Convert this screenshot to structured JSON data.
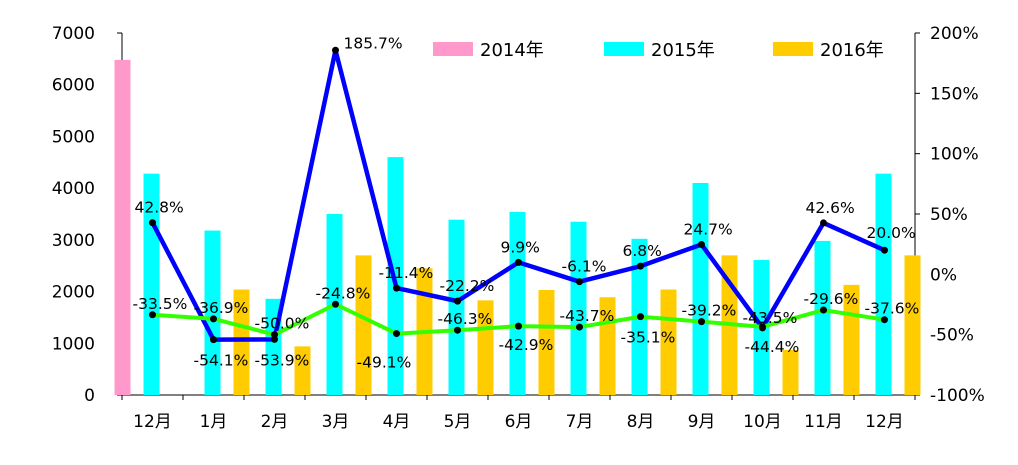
{
  "chart_data": {
    "type": "bar",
    "categories": [
      "12月",
      "1月",
      "2月",
      "3月",
      "4月",
      "5月",
      "6月",
      "7月",
      "8月",
      "9月",
      "10月",
      "11月",
      "12月"
    ],
    "y_left": {
      "min": 0,
      "max": 7000,
      "ticks": [
        "0",
        "1000",
        "2000",
        "3000",
        "4000",
        "5000",
        "6000",
        "7000"
      ]
    },
    "y_right": {
      "min": -100,
      "max": 200,
      "ticks": [
        "-100%",
        "-50%",
        "0%",
        "50%",
        "100%",
        "150%",
        "200%"
      ]
    },
    "grid": false,
    "legend_position": "top",
    "bar_series": [
      {
        "name": "2014年",
        "color": "#ff99cc",
        "values": [
          6480,
          null,
          null,
          null,
          null,
          null,
          null,
          null,
          null,
          null,
          null,
          null,
          null
        ]
      },
      {
        "name": "2015年",
        "color": "#00ffff",
        "values": [
          4280,
          3180,
          1860,
          3500,
          4600,
          3390,
          3540,
          3350,
          3020,
          4100,
          2610,
          2980,
          4280
        ]
      },
      {
        "name": "2016年",
        "color": "#ffcc00",
        "values": [
          null,
          2040,
          940,
          2700,
          2450,
          1830,
          2030,
          1890,
          2040,
          2700,
          870,
          2130,
          2700
        ]
      }
    ],
    "line_series": [
      {
        "color": "#0000ff",
        "values": [
          42.8,
          -54.1,
          -53.9,
          185.7,
          -11.4,
          -22.2,
          9.9,
          -6.1,
          6.8,
          24.7,
          -44.4,
          42.6,
          20.0
        ],
        "labels": [
          "42.8%",
          "-54.1%",
          "-53.9%",
          "185.7%",
          "-11.4%",
          "-22.2%",
          "9.9%",
          "-6.1%",
          "6.8%",
          "24.7%",
          "-44.4%",
          "42.6%",
          "20.0%"
        ]
      },
      {
        "color": "#33ff00",
        "values": [
          -33.5,
          -36.9,
          -50.0,
          -24.8,
          -49.1,
          -46.3,
          -42.9,
          -43.7,
          -35.1,
          -39.2,
          -43.5,
          -29.6,
          -37.6
        ],
        "labels": [
          "-33.5%",
          "-36.9%",
          "-50.0%",
          "-24.8%",
          "-49.1%",
          "-46.3%",
          "-42.9%",
          "-43.7%",
          "-35.1%",
          "-39.2%",
          "-43.5%",
          "-29.6%",
          "-37.6%"
        ]
      }
    ]
  }
}
